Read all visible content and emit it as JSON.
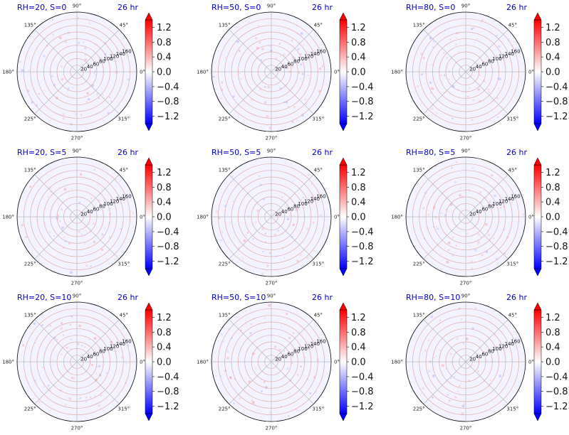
{
  "chart_data": {
    "type": "polar-heatmap-grid",
    "time_label": "26 hr",
    "panels": [
      {
        "title": "RH=20, S=0",
        "rh": 20,
        "s": 0
      },
      {
        "title": "RH=50, S=0",
        "rh": 50,
        "s": 0
      },
      {
        "title": "RH=80, S=0",
        "rh": 80,
        "s": 0
      },
      {
        "title": "RH=20, S=5",
        "rh": 20,
        "s": 5
      },
      {
        "title": "RH=50, S=5",
        "rh": 50,
        "s": 5
      },
      {
        "title": "RH=80, S=5",
        "rh": 80,
        "s": 5
      },
      {
        "title": "RH=20, S=10",
        "rh": 20,
        "s": 10
      },
      {
        "title": "RH=50, S=10",
        "rh": 50,
        "s": 10
      },
      {
        "title": "RH=80, S=10",
        "rh": 80,
        "s": 10
      }
    ],
    "angular_ticks": [
      "90°",
      "45°",
      "0°",
      "315°",
      "270°",
      "225°",
      "180°",
      "135°"
    ],
    "angular_tick_degrees": [
      90,
      45,
      0,
      315,
      270,
      225,
      180,
      135
    ],
    "radial_ticks": [
      "20",
      "40",
      "60",
      "80",
      "100",
      "120",
      "140",
      "160"
    ],
    "radial_tick_values": [
      20,
      40,
      60,
      80,
      100,
      120,
      140,
      160
    ],
    "radial_max": 180,
    "colorbar": {
      "colormap": "bwr",
      "extend": "both",
      "vmin": -1.4,
      "vmax": 1.4,
      "tick_labels": [
        "1.2",
        "0.8",
        "0.4",
        "0.0",
        "−0.4",
        "−0.8",
        "−1.2"
      ],
      "tick_values": [
        1.2,
        0.8,
        0.4,
        0.0,
        -0.4,
        -0.8,
        -1.2
      ],
      "colors": {
        "min": "#0000ff",
        "mid": "#ffffff",
        "max": "#ff0000"
      }
    }
  }
}
